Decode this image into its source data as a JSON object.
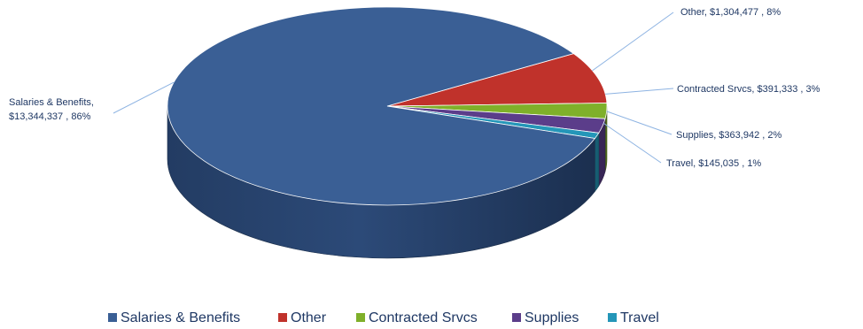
{
  "chart_data": {
    "type": "pie",
    "title": "",
    "three_d": true,
    "legend_position": "bottom",
    "currency": "$",
    "series": [
      {
        "name": "Salaries & Benefits",
        "value": 13344337,
        "percent": 86,
        "color": "#3a5f95",
        "label_line1": "Salaries & Benefits,",
        "label_line2": "$13,344,337 , 86%"
      },
      {
        "name": "Other",
        "value": 1304477,
        "percent": 8,
        "color": "#c0322b",
        "label_line1": "Other,  $1,304,477 , 8%"
      },
      {
        "name": "Contracted Srvcs",
        "value": 391333,
        "percent": 3,
        "color": "#7fb02a",
        "label_line1": "Contracted Srvcs,  $391,333 , 3%"
      },
      {
        "name": "Supplies",
        "value": 363942,
        "percent": 2,
        "color": "#5b3d8a",
        "label_line1": "Supplies,  $363,942 , 2%"
      },
      {
        "name": "Travel",
        "value": 145035,
        "percent": 1,
        "color": "#2496b8",
        "label_line1": "Travel,  $145,035 , 1%"
      }
    ]
  }
}
